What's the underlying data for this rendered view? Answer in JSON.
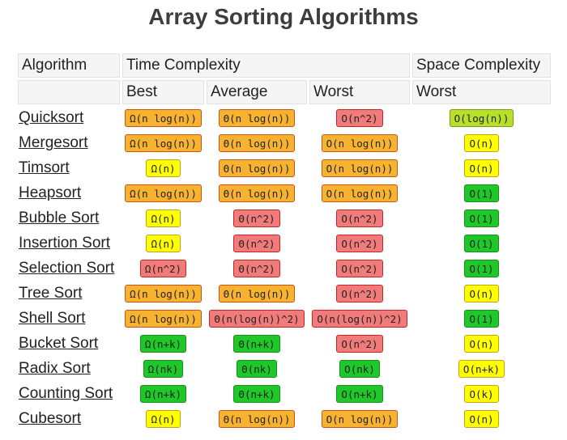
{
  "title": "Array Sorting Algorithms",
  "headers": {
    "algorithm": "Algorithm",
    "time": "Time Complexity",
    "space": "Space Complexity",
    "best": "Best",
    "average": "Average",
    "worst": "Worst",
    "space_worst": "Worst"
  },
  "colors": {
    "orange": "#f7b32f",
    "yellow": "#ffff00",
    "red": "#f17b7b",
    "green": "#1ec828",
    "lime": "#b6e02a"
  },
  "rows": [
    {
      "name": "Quicksort",
      "best": {
        "text": "Ω(n log(n))",
        "color": "orange"
      },
      "avg": {
        "text": "Θ(n log(n))",
        "color": "orange"
      },
      "worst": {
        "text": "O(n^2)",
        "color": "red"
      },
      "space": {
        "text": "O(log(n))",
        "color": "lime"
      }
    },
    {
      "name": "Mergesort",
      "best": {
        "text": "Ω(n log(n))",
        "color": "orange"
      },
      "avg": {
        "text": "Θ(n log(n))",
        "color": "orange"
      },
      "worst": {
        "text": "O(n log(n))",
        "color": "orange"
      },
      "space": {
        "text": "O(n)",
        "color": "yellow"
      }
    },
    {
      "name": "Timsort",
      "best": {
        "text": "Ω(n)",
        "color": "yellow"
      },
      "avg": {
        "text": "Θ(n log(n))",
        "color": "orange"
      },
      "worst": {
        "text": "O(n log(n))",
        "color": "orange"
      },
      "space": {
        "text": "O(n)",
        "color": "yellow"
      }
    },
    {
      "name": "Heapsort",
      "best": {
        "text": "Ω(n log(n))",
        "color": "orange"
      },
      "avg": {
        "text": "Θ(n log(n))",
        "color": "orange"
      },
      "worst": {
        "text": "O(n log(n))",
        "color": "orange"
      },
      "space": {
        "text": "O(1)",
        "color": "green"
      }
    },
    {
      "name": "Bubble Sort",
      "best": {
        "text": "Ω(n)",
        "color": "yellow"
      },
      "avg": {
        "text": "Θ(n^2)",
        "color": "red"
      },
      "worst": {
        "text": "O(n^2)",
        "color": "red"
      },
      "space": {
        "text": "O(1)",
        "color": "green"
      }
    },
    {
      "name": "Insertion Sort",
      "best": {
        "text": "Ω(n)",
        "color": "yellow"
      },
      "avg": {
        "text": "Θ(n^2)",
        "color": "red"
      },
      "worst": {
        "text": "O(n^2)",
        "color": "red"
      },
      "space": {
        "text": "O(1)",
        "color": "green"
      }
    },
    {
      "name": "Selection Sort",
      "best": {
        "text": "Ω(n^2)",
        "color": "red"
      },
      "avg": {
        "text": "Θ(n^2)",
        "color": "red"
      },
      "worst": {
        "text": "O(n^2)",
        "color": "red"
      },
      "space": {
        "text": "O(1)",
        "color": "green"
      }
    },
    {
      "name": "Tree Sort",
      "best": {
        "text": "Ω(n log(n))",
        "color": "orange"
      },
      "avg": {
        "text": "Θ(n log(n))",
        "color": "orange"
      },
      "worst": {
        "text": "O(n^2)",
        "color": "red"
      },
      "space": {
        "text": "O(n)",
        "color": "yellow"
      }
    },
    {
      "name": "Shell Sort",
      "best": {
        "text": "Ω(n log(n))",
        "color": "orange"
      },
      "avg": {
        "text": "Θ(n(log(n))^2)",
        "color": "red"
      },
      "worst": {
        "text": "O(n(log(n))^2)",
        "color": "red"
      },
      "space": {
        "text": "O(1)",
        "color": "green"
      }
    },
    {
      "name": "Bucket Sort",
      "best": {
        "text": "Ω(n+k)",
        "color": "green"
      },
      "avg": {
        "text": "Θ(n+k)",
        "color": "green"
      },
      "worst": {
        "text": "O(n^2)",
        "color": "red"
      },
      "space": {
        "text": "O(n)",
        "color": "yellow"
      }
    },
    {
      "name": "Radix Sort",
      "best": {
        "text": "Ω(nk)",
        "color": "green"
      },
      "avg": {
        "text": "Θ(nk)",
        "color": "green"
      },
      "worst": {
        "text": "O(nk)",
        "color": "green"
      },
      "space": {
        "text": "O(n+k)",
        "color": "yellow"
      }
    },
    {
      "name": "Counting Sort",
      "best": {
        "text": "Ω(n+k)",
        "color": "green"
      },
      "avg": {
        "text": "Θ(n+k)",
        "color": "green"
      },
      "worst": {
        "text": "O(n+k)",
        "color": "green"
      },
      "space": {
        "text": "O(k)",
        "color": "yellow"
      }
    },
    {
      "name": "Cubesort",
      "best": {
        "text": "Ω(n)",
        "color": "yellow"
      },
      "avg": {
        "text": "Θ(n log(n))",
        "color": "orange"
      },
      "worst": {
        "text": "O(n log(n))",
        "color": "orange"
      },
      "space": {
        "text": "O(n)",
        "color": "yellow"
      }
    }
  ]
}
